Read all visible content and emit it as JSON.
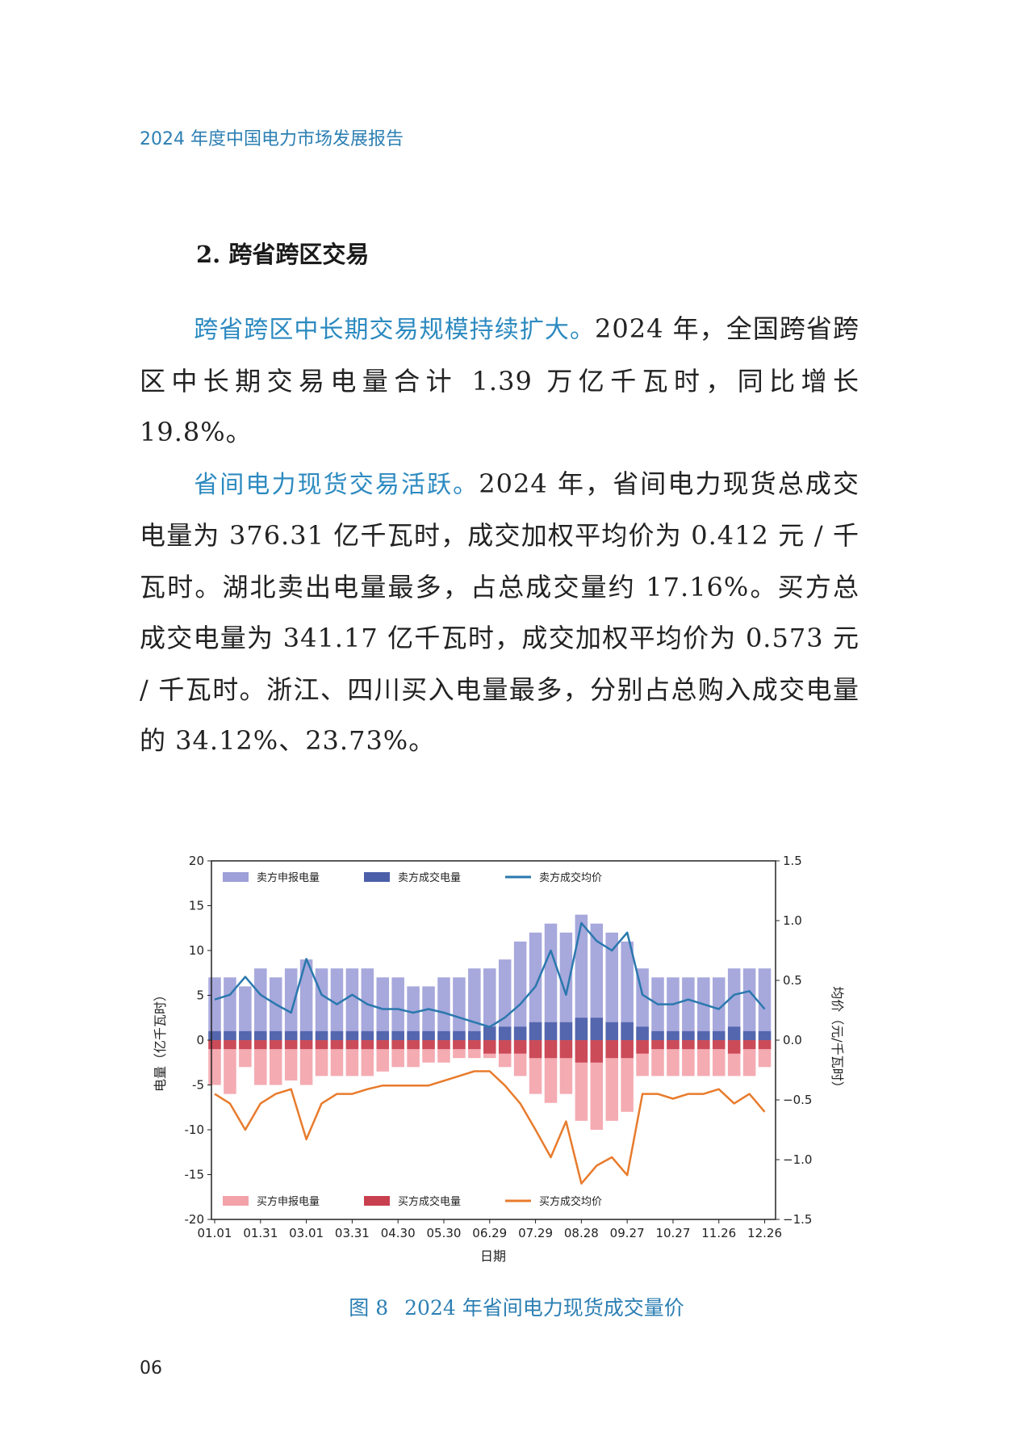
{
  "running_head": "2024 年度中国电力市场发展报告",
  "section_heading": "2. 跨省跨区交易",
  "paragraphs": [
    {
      "lead": "跨省跨区中长期交易规模持续扩大。",
      "text": "2024 年，全国跨省跨区中长期交易电量合计 1.39 万亿千瓦时，同比增长 19.8%。"
    },
    {
      "lead": "省间电力现货交易活跃。",
      "text": "2024 年，省间电力现货总成交电量为 376.31 亿千瓦时，成交加权平均价为 0.412 元 / 千瓦时。湖北卖出电量最多，占总成交量约 17.16%。买方总成交电量为 341.17 亿千瓦时，成交加权平均价为 0.573 元 / 千瓦时。浙江、四川买入电量最多，分别占总购入成交电量的 34.12%、23.73%。"
    }
  ],
  "figure": {
    "number": "图 8",
    "title": "2024 年省间电力现货成交量价"
  },
  "page_number": "06",
  "chart_data": {
    "type": "bar+line",
    "xlabel": "日期",
    "ylabel_left": "电量（亿千瓦时）",
    "ylabel_right": "均价（元/千瓦时）",
    "ylim_left": [
      -20,
      20
    ],
    "ylim_right": [
      -1.5,
      1.5
    ],
    "yticks_left": [
      "20",
      "15",
      "10",
      "5",
      "0",
      "-5",
      "-10",
      "-15",
      "-20"
    ],
    "yticks_right": [
      "1.5",
      "1.0",
      "0.5",
      "0.0",
      "-0.5",
      "-1.0",
      "-1.5"
    ],
    "xticks": [
      "01.01",
      "01.31",
      "03.01",
      "03.31",
      "04.30",
      "05.30",
      "06.29",
      "07.29",
      "08.28",
      "09.27",
      "10.27",
      "11.26",
      "12.26"
    ],
    "grid": false,
    "legend_top": "top-left",
    "legend_bottom": "bottom-left",
    "x_day_of_year": [
      0,
      10,
      20,
      30,
      40,
      50,
      60,
      70,
      80,
      90,
      100,
      110,
      120,
      130,
      140,
      150,
      160,
      170,
      180,
      190,
      200,
      210,
      220,
      230,
      240,
      250,
      260,
      270,
      280,
      290,
      300,
      310,
      320,
      330,
      340,
      350,
      360
    ],
    "series": [
      {
        "name": "卖方申报电量",
        "axis": "left",
        "kind": "bar",
        "color": "#9d9fd8",
        "values": [
          7,
          7,
          6,
          8,
          7,
          8,
          9,
          8,
          8,
          8,
          8,
          7,
          7,
          6,
          6,
          7,
          7,
          8,
          8,
          9,
          11,
          12,
          13,
          12,
          14,
          13,
          12,
          11,
          8,
          7,
          7,
          7,
          7,
          7,
          8,
          8,
          8
        ]
      },
      {
        "name": "卖方成交电量",
        "axis": "left",
        "kind": "bar",
        "color": "#4b5ea8",
        "values": [
          1,
          1,
          1,
          1,
          1,
          1,
          1,
          1,
          1,
          1,
          1,
          1,
          1,
          1,
          1,
          1,
          1,
          1,
          1.5,
          1.5,
          1.5,
          2,
          2,
          2,
          2.5,
          2.5,
          2,
          2,
          1.5,
          1,
          1,
          1,
          1,
          1,
          1.5,
          1,
          1
        ]
      },
      {
        "name": "卖方成交均价",
        "axis": "right",
        "kind": "line",
        "color": "#2a78ae",
        "values": [
          0.34,
          0.38,
          0.53,
          0.38,
          0.3,
          0.23,
          0.68,
          0.38,
          0.3,
          0.38,
          0.3,
          0.26,
          0.26,
          0.23,
          0.26,
          0.23,
          0.19,
          0.15,
          0.11,
          0.19,
          0.3,
          0.45,
          0.75,
          0.38,
          0.98,
          0.83,
          0.75,
          0.9,
          0.38,
          0.3,
          0.3,
          0.34,
          0.3,
          0.26,
          0.38,
          0.41,
          0.26
        ]
      },
      {
        "name": "买方申报电量",
        "axis": "left",
        "kind": "bar",
        "color": "#f3a2aa",
        "values": [
          -5,
          -6,
          -3,
          -5,
          -5,
          -4.5,
          -5,
          -4,
          -4,
          -4,
          -4,
          -3.5,
          -3,
          -3,
          -2.5,
          -2.5,
          -2,
          -2,
          -2,
          -3,
          -4,
          -6,
          -7,
          -6,
          -9,
          -10,
          -9,
          -8,
          -4,
          -4,
          -4,
          -4,
          -4,
          -4,
          -4,
          -4,
          -3
        ]
      },
      {
        "name": "买方成交电量",
        "axis": "left",
        "kind": "bar",
        "color": "#c8404f",
        "values": [
          -1,
          -1,
          -1,
          -1,
          -1,
          -1,
          -1,
          -1,
          -1,
          -1,
          -1,
          -1,
          -1,
          -1,
          -1,
          -1,
          -1,
          -1,
          -1.5,
          -1.5,
          -1.5,
          -2,
          -2,
          -2,
          -2.5,
          -2.5,
          -2,
          -2,
          -1.5,
          -1,
          -1,
          -1,
          -1,
          -1,
          -1.5,
          -1,
          -1
        ]
      },
      {
        "name": "买方成交均价",
        "axis": "right",
        "kind": "line",
        "color": "#e87b2c",
        "values": [
          -0.45,
          -0.53,
          -0.75,
          -0.53,
          -0.45,
          -0.41,
          -0.83,
          -0.53,
          -0.45,
          -0.45,
          -0.41,
          -0.38,
          -0.38,
          -0.38,
          -0.38,
          -0.34,
          -0.3,
          -0.26,
          -0.26,
          -0.38,
          -0.53,
          -0.75,
          -0.98,
          -0.68,
          -1.2,
          -1.05,
          -0.98,
          -1.13,
          -0.45,
          -0.45,
          -0.49,
          -0.45,
          -0.45,
          -0.41,
          -0.53,
          -0.45,
          -0.6
        ]
      }
    ]
  }
}
